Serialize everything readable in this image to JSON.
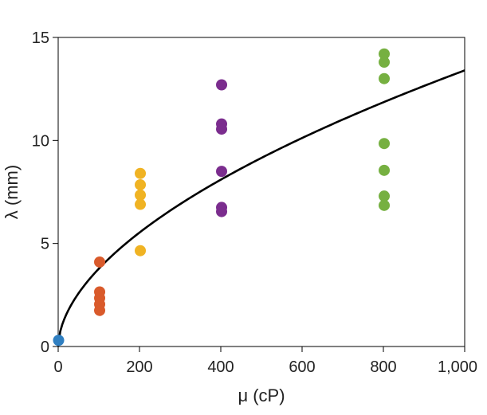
{
  "chart_data": {
    "type": "scatter",
    "xlabel": "μ (cP)",
    "ylabel": "λ (mm)",
    "xlim": [
      0,
      1000
    ],
    "ylim": [
      0,
      15
    ],
    "x_ticks": [
      {
        "value": 0,
        "label": "0"
      },
      {
        "value": 200,
        "label": "200"
      },
      {
        "value": 400,
        "label": "400"
      },
      {
        "value": 600,
        "label": "600"
      },
      {
        "value": 800,
        "label": "800"
      },
      {
        "value": 1000,
        "label": "1,000"
      }
    ],
    "y_ticks": [
      {
        "value": 0,
        "label": "0"
      },
      {
        "value": 5,
        "label": "5"
      },
      {
        "value": 10,
        "label": "10"
      },
      {
        "value": 15,
        "label": "15"
      }
    ],
    "grid": false,
    "series": [
      {
        "color": "#2f7fc1",
        "points": [
          [
            1,
            0.3
          ]
        ]
      },
      {
        "color": "#d95a2b",
        "points": [
          [
            102,
            4.1
          ],
          [
            102,
            2.65
          ],
          [
            102,
            2.35
          ],
          [
            102,
            2.05
          ],
          [
            102,
            1.75
          ]
        ]
      },
      {
        "color": "#f0b323",
        "points": [
          [
            202,
            8.4
          ],
          [
            202,
            7.85
          ],
          [
            202,
            7.35
          ],
          [
            202,
            6.9
          ],
          [
            202,
            4.65
          ]
        ]
      },
      {
        "color": "#7b2d8e",
        "points": [
          [
            402,
            12.7
          ],
          [
            402,
            10.8
          ],
          [
            402,
            10.55
          ],
          [
            402,
            8.5
          ],
          [
            402,
            6.75
          ],
          [
            402,
            6.55
          ]
        ]
      },
      {
        "color": "#76b041",
        "points": [
          [
            802,
            14.2
          ],
          [
            802,
            13.8
          ],
          [
            802,
            13.0
          ],
          [
            802,
            9.85
          ],
          [
            802,
            8.55
          ],
          [
            802,
            7.3
          ],
          [
            802,
            6.85
          ]
        ]
      }
    ],
    "fit_curve": {
      "type": "line",
      "color": "#000000",
      "a": 0.3,
      "exponent": 0.55
    }
  }
}
